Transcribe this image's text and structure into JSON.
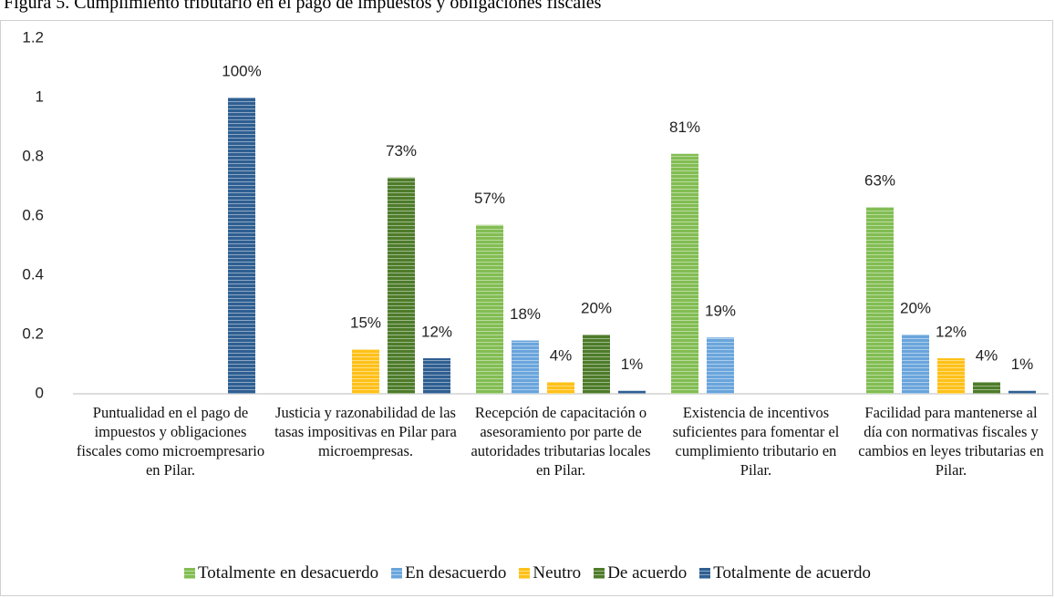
{
  "chart_data": {
    "type": "bar",
    "title": "Figura 5. Cumplimiento tributario en el pago de impuestos y obligaciones fiscales",
    "categories": [
      "Puntualidad en el pago de impuestos y obligaciones fiscales como microempresario en Pilar.",
      "Justicia y razonabilidad de las tasas impositivas en Pilar para microempresas.",
      "Recepción de capacitación o asesoramiento por parte de autoridades tributarias locales en Pilar.",
      "Existencia de incentivos suficientes para fomentar el cumplimiento tributario en Pilar.",
      "Facilidad para mantenerse al día con normativas fiscales y cambios en leyes tributarias en Pilar."
    ],
    "series": [
      {
        "name": "Totalmente en desacuerdo",
        "color": "#82bd52",
        "values": [
          null,
          null,
          0.57,
          0.81,
          0.63
        ],
        "value_labels": [
          null,
          null,
          "57%",
          "81%",
          "63%"
        ]
      },
      {
        "name": "En desacuerdo",
        "color": "#6aa5dc",
        "values": [
          null,
          null,
          0.18,
          0.19,
          0.2
        ],
        "value_labels": [
          null,
          null,
          "18%",
          "19%",
          "20%"
        ]
      },
      {
        "name": "Neutro",
        "color": "#ffc119",
        "values": [
          null,
          0.15,
          0.04,
          null,
          0.12
        ],
        "value_labels": [
          null,
          "15%",
          "4%",
          null,
          "12%"
        ]
      },
      {
        "name": "De acuerdo",
        "color": "#4e7c2a",
        "values": [
          null,
          0.73,
          0.2,
          null,
          0.04
        ],
        "value_labels": [
          null,
          "73%",
          "20%",
          null,
          "4%"
        ]
      },
      {
        "name": "Totalmente de acuerdo",
        "color": "#2f5f92",
        "values": [
          1,
          0.12,
          0.01,
          null,
          0.01
        ],
        "value_labels": [
          "100%",
          "12%",
          "1%",
          null,
          "1%"
        ]
      }
    ],
    "ylim": [
      0,
      1.2
    ],
    "yticks": [
      0,
      0.2,
      0.4,
      0.6,
      0.8,
      1,
      1.2
    ],
    "grid": false
  }
}
